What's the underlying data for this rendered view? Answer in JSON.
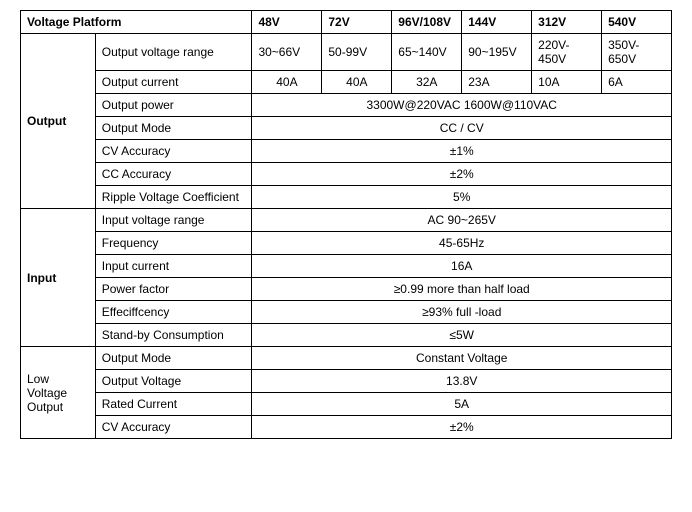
{
  "header": {
    "title": "Voltage Platform",
    "cols": [
      "48V",
      "72V",
      "96V/108V",
      "144V",
      "312V",
      "540V"
    ]
  },
  "output": {
    "label": "Output",
    "rows": {
      "voltage_range": {
        "label": "Output voltage range",
        "vals": [
          "30~66V",
          "50-99V",
          "65~140V",
          "90~195V",
          "220V-450V",
          "350V-650V"
        ]
      },
      "current": {
        "label": "Output current",
        "vals": [
          "40A",
          "40A",
          "32A",
          "23A",
          "10A",
          "6A"
        ]
      },
      "power": {
        "label": "Output     power",
        "val": "3300W@220VAC 1600W@110VAC"
      },
      "mode": {
        "label": "Output Mode",
        "val": "CC / CV"
      },
      "cv_acc": {
        "label": "CV Accuracy",
        "val": "±1%"
      },
      "cc_acc": {
        "label": "CC Accuracy",
        "val": "±2%"
      },
      "ripple": {
        "label": "Ripple Voltage Coefficient",
        "val": "5%"
      }
    }
  },
  "input": {
    "label": "Input",
    "rows": {
      "voltage_range": {
        "label": "Input    voltage range",
        "val": "AC 90~265V"
      },
      "frequency": {
        "label": "Frequency",
        "val": "45-65Hz"
      },
      "current": {
        "label": "Input current",
        "val": "16A"
      },
      "pf": {
        "label": "Power factor",
        "val": "≥0.99 more than half load"
      },
      "eff": {
        "label": "Effeciffcency",
        "val": "≥93%    full -load"
      },
      "standby": {
        "label": "Stand-by Consumption",
        "val": "≤5W"
      }
    }
  },
  "low_voltage": {
    "label": "Low Voltage Output",
    "rows": {
      "mode": {
        "label": "Output Mode",
        "val": "Constant Voltage"
      },
      "voltage": {
        "label": "Output Voltage",
        "val": "13.8V"
      },
      "current": {
        "label": "Rated Current",
        "val": "5A"
      },
      "cv_acc": {
        "label": "CV Accuracy",
        "val": "±2%"
      }
    }
  }
}
